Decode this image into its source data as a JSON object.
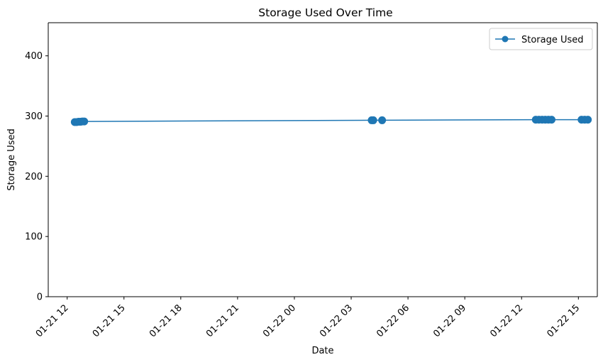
{
  "chart_data": {
    "type": "line",
    "title": "Storage Used Over Time",
    "xlabel": "Date",
    "ylabel": "Storage Used",
    "xlim": [
      "2025-01-21 11:00",
      "2025-01-22 16:00"
    ],
    "ylim": [
      0,
      455
    ],
    "x_ticks": [
      {
        "value": "2025-01-21 12:00",
        "label": "01-21 12"
      },
      {
        "value": "2025-01-21 15:00",
        "label": "01-21 15"
      },
      {
        "value": "2025-01-21 18:00",
        "label": "01-21 18"
      },
      {
        "value": "2025-01-21 21:00",
        "label": "01-21 21"
      },
      {
        "value": "2025-01-22 00:00",
        "label": "01-22 00"
      },
      {
        "value": "2025-01-22 03:00",
        "label": "01-22 03"
      },
      {
        "value": "2025-01-22 06:00",
        "label": "01-22 06"
      },
      {
        "value": "2025-01-22 09:00",
        "label": "01-22 09"
      },
      {
        "value": "2025-01-22 12:00",
        "label": "01-22 12"
      },
      {
        "value": "2025-01-22 15:00",
        "label": "01-22 15"
      }
    ],
    "y_ticks": [
      0,
      100,
      200,
      300,
      400
    ],
    "grid": false,
    "legend": "top-right",
    "series": [
      {
        "name": "Storage Used",
        "color": "#1f77b4",
        "marker": "circle",
        "points": [
          {
            "x": "2025-01-21 12:24",
            "y": 290
          },
          {
            "x": "2025-01-21 12:30",
            "y": 290
          },
          {
            "x": "2025-01-21 12:36",
            "y": 290.5
          },
          {
            "x": "2025-01-21 12:42",
            "y": 290.5
          },
          {
            "x": "2025-01-21 12:48",
            "y": 291
          },
          {
            "x": "2025-01-21 12:54",
            "y": 291
          },
          {
            "x": "2025-01-22 04:05",
            "y": 293
          },
          {
            "x": "2025-01-22 04:10",
            "y": 293
          },
          {
            "x": "2025-01-22 04:38",
            "y": 293
          },
          {
            "x": "2025-01-22 12:45",
            "y": 294
          },
          {
            "x": "2025-01-22 12:55",
            "y": 294
          },
          {
            "x": "2025-01-22 13:05",
            "y": 294
          },
          {
            "x": "2025-01-22 13:15",
            "y": 294
          },
          {
            "x": "2025-01-22 13:25",
            "y": 294
          },
          {
            "x": "2025-01-22 13:35",
            "y": 294
          },
          {
            "x": "2025-01-22 15:10",
            "y": 294
          },
          {
            "x": "2025-01-22 15:20",
            "y": 294
          },
          {
            "x": "2025-01-22 15:30",
            "y": 294
          }
        ]
      }
    ]
  }
}
